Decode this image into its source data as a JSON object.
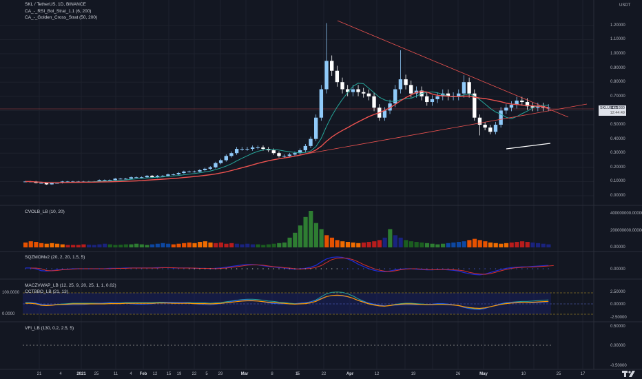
{
  "header": {
    "symbol_line": "SKL / TetherUS, 1D, BINANCE",
    "indicators": [
      "CA_-_RSI_Bol_Strat_1.1 (6, 200)",
      "CA_-_Golden_Cross_Strat (50, 200)"
    ]
  },
  "currency_label": "USDT",
  "price_axis": [
    "1.20000",
    "1.10000",
    "1.00000",
    "0.90000",
    "0.80000",
    "0.70000",
    "0.60000",
    "0.50000",
    "0.40000",
    "0.30000",
    "0.20000",
    "0.10000",
    "0.00000"
  ],
  "price_badge": {
    "symbol": "SKLUSDT",
    "price": "0.61930",
    "countdown": "12:44:49"
  },
  "panes": {
    "cvol": {
      "title": "CVOLB_LB (10, 20)",
      "ticks": [
        "400000000.00000",
        "200000000.00000",
        "0.00000"
      ]
    },
    "sqz": {
      "title": "SQZMOMv2 (20, 2, 20, 1.5, 5)",
      "ticks": [
        "0.00000"
      ]
    },
    "macd": {
      "title1": "MACZVWAP_LB (12, 25, 9, 20, 25, 1, 1, 0.02)",
      "title2": "CCTBBO_LB (21, 13)",
      "ticks": [
        "2.50000",
        "0.00000",
        "-2.50000"
      ],
      "left_ticks": [
        "100.0000",
        "0.0000"
      ]
    },
    "vfi": {
      "title": "VFI_LB (130, 0.2, 2.5, 5)",
      "ticks": [
        "0.50000",
        "0.00000",
        "-0.50000"
      ]
    }
  },
  "time_axis": [
    "21",
    "2021",
    "11",
    "Feb",
    "15",
    "22",
    "Mar",
    "8",
    "15",
    "22",
    "Apr",
    "12",
    "19",
    "26",
    "May",
    "10",
    "17"
  ],
  "time_axis_bold": [
    "2021",
    "Feb",
    "Mar",
    "Apr",
    "May"
  ],
  "extra_time_labels": [
    "4",
    "25",
    "4",
    "12",
    "19",
    "5",
    "29",
    "9",
    "25"
  ],
  "colors": {
    "bg": "#131722",
    "up": "#90caf9",
    "down": "#ffffff",
    "ma_fast": "#26a69a",
    "ma_slow": "#ef5350",
    "trend": "#ef5350"
  },
  "logo": "tradingview-logo",
  "chart_data": [
    {
      "type": "candlestick",
      "title": "SKL / TetherUS, 1D, BINANCE",
      "ylabel": "USDT",
      "ylim": [
        0,
        1.3
      ],
      "close_series": [
        0.1,
        0.1,
        0.09,
        0.09,
        0.08,
        0.09,
        0.09,
        0.1,
        0.1,
        0.1,
        0.1,
        0.1,
        0.1,
        0.1,
        0.11,
        0.11,
        0.11,
        0.12,
        0.12,
        0.12,
        0.13,
        0.13,
        0.13,
        0.14,
        0.13,
        0.14,
        0.14,
        0.15,
        0.15,
        0.16,
        0.17,
        0.17,
        0.17,
        0.18,
        0.19,
        0.2,
        0.23,
        0.25,
        0.28,
        0.3,
        0.33,
        0.33,
        0.33,
        0.34,
        0.34,
        0.33,
        0.32,
        0.3,
        0.28,
        0.28,
        0.29,
        0.3,
        0.32,
        0.35,
        0.4,
        0.55,
        0.75,
        0.95,
        0.88,
        0.8,
        0.75,
        0.73,
        0.75,
        0.73,
        0.72,
        0.7,
        0.62,
        0.55,
        0.6,
        0.65,
        0.75,
        0.82,
        0.78,
        0.72,
        0.74,
        0.7,
        0.66,
        0.68,
        0.7,
        0.72,
        0.7,
        0.7,
        0.72,
        0.8,
        0.72,
        0.55,
        0.5,
        0.48,
        0.45,
        0.5,
        0.6,
        0.62,
        0.64,
        0.67,
        0.66,
        0.63,
        0.62,
        0.63,
        0.62,
        0.62
      ],
      "moving_average_50": "green",
      "moving_average_200": "red"
    },
    {
      "type": "bar",
      "title": "CVOLB_LB (10, 20)",
      "ylim": [
        0,
        450000000
      ],
      "values": [
        40,
        50,
        45,
        35,
        30,
        35,
        30,
        25,
        20,
        20,
        20,
        25,
        22,
        20,
        25,
        30,
        25,
        20,
        22,
        25,
        25,
        30,
        25,
        20,
        25,
        30,
        35,
        30,
        25,
        30,
        35,
        40,
        35,
        45,
        50,
        40,
        35,
        40,
        30,
        35,
        30,
        25,
        30,
        25,
        25,
        20,
        25,
        30,
        35,
        40,
        80,
        120,
        180,
        250,
        300,
        200,
        150,
        100,
        80,
        60,
        50,
        45,
        40,
        35,
        40,
        45,
        50,
        60,
        80,
        150,
        100,
        80,
        60,
        50,
        45,
        40,
        35,
        30,
        25,
        30,
        35,
        40,
        45,
        50,
        60,
        70,
        60,
        50,
        40,
        35,
        30,
        35,
        40,
        45,
        50,
        45,
        40,
        35,
        30,
        25
      ]
    },
    {
      "type": "line",
      "title": "SQZMOMv2 (20, 2, 20, 1.5, 5)",
      "series": [
        {
          "values": [
            0.02,
            0.02,
            0.0,
            -0.05,
            -0.06,
            -0.05,
            -0.03,
            -0.02,
            -0.01,
            0.0,
            0.0,
            0.0,
            0.0,
            0.0,
            0.0,
            0.0,
            0.01,
            0.01,
            0.01,
            0.02,
            0.02,
            0.02,
            0.02,
            0.02,
            0.02,
            0.03,
            0.03,
            0.03,
            0.02,
            0.02,
            0.02,
            0.02,
            0.01,
            0.01,
            0.01,
            0.0,
            0.01,
            0.02,
            0.04,
            0.06,
            0.08,
            0.1,
            0.11,
            0.11,
            0.1,
            0.08,
            0.06,
            0.05,
            0.03,
            0.02,
            0.0,
            -0.01,
            0.0,
            0.01,
            0.04,
            0.09,
            0.18,
            0.26,
            0.3,
            0.31,
            0.3,
            0.26,
            0.2,
            0.12,
            0.06,
            0.0,
            -0.04,
            -0.07,
            -0.08,
            -0.06,
            -0.03,
            -0.01,
            0.0,
            0.0,
            -0.01,
            -0.02,
            -0.03,
            -0.03,
            -0.02,
            -0.02,
            -0.03,
            -0.04,
            -0.06,
            -0.1,
            -0.13,
            -0.15,
            -0.16,
            -0.14,
            -0.1,
            -0.06,
            -0.02,
            0.01,
            0.03,
            0.04,
            0.05,
            0.05,
            0.06,
            0.07,
            0.08,
            0.09
          ]
        }
      ]
    }
  ]
}
